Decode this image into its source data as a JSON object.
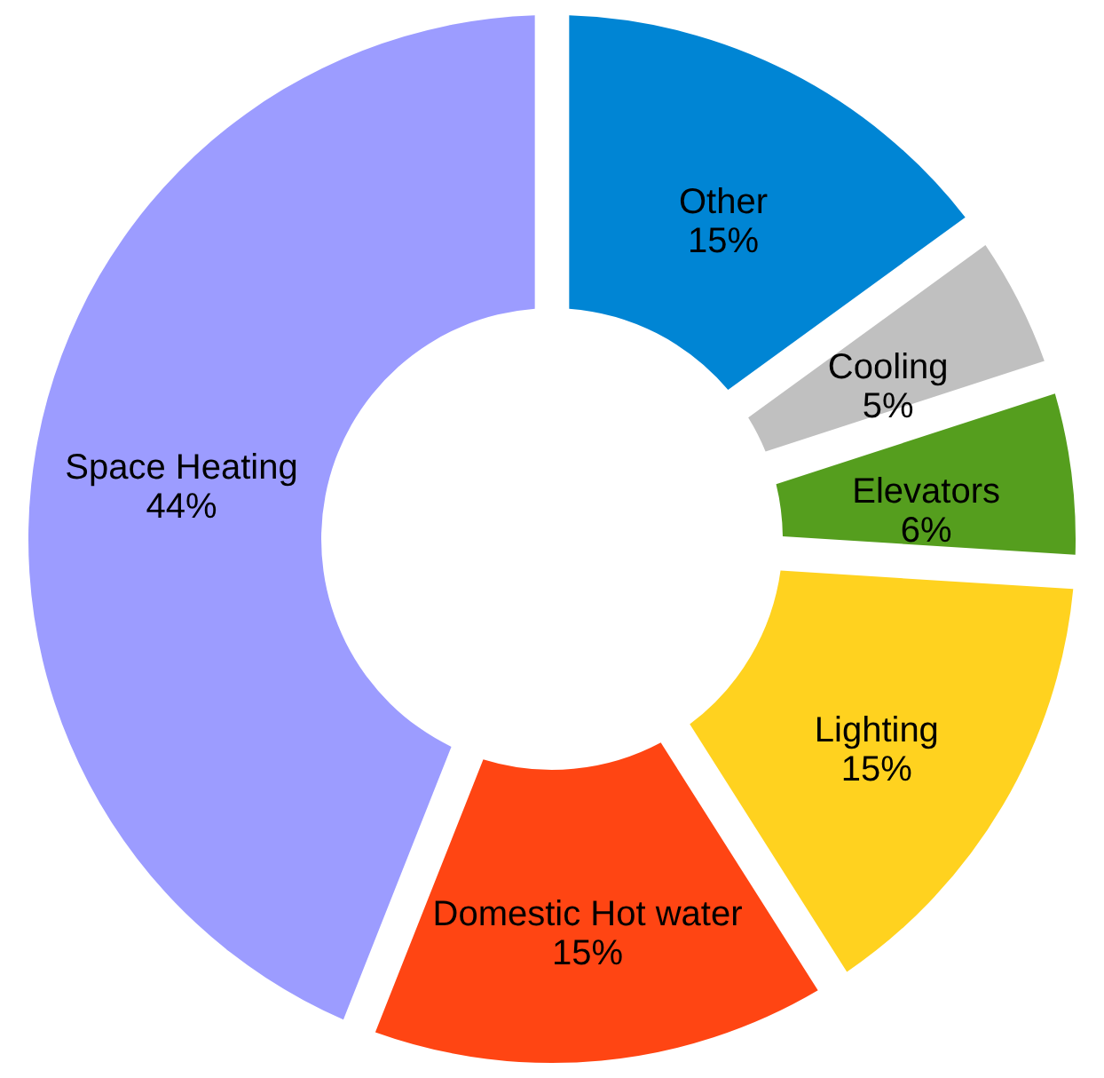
{
  "chart_data": {
    "type": "donut",
    "categories": [
      "Other",
      "Cooling",
      "Elevators",
      "Lighting",
      "Domestic Hot water",
      "Space Heating"
    ],
    "values": [
      15,
      5,
      6,
      15,
      15,
      44
    ],
    "value_labels": [
      "15%",
      "5%",
      "6%",
      "15%",
      "15%",
      "44%"
    ],
    "colors": [
      "#0085d4",
      "#c0c0c0",
      "#559e1e",
      "#ffd21f",
      "#ff4513",
      "#9c9cff"
    ],
    "legend": false
  }
}
